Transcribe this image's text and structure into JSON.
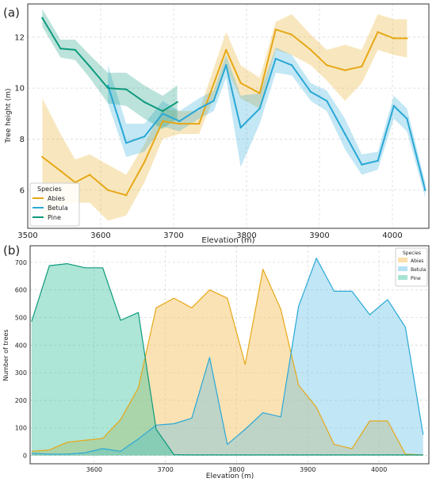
{
  "chart_data": [
    {
      "panel_label": "(a)",
      "type": "line",
      "xlabel": "Elevation (m)",
      "ylabel": "Tree height (m)",
      "xlim": [
        3500,
        4050
      ],
      "ylim": [
        4.5,
        13.3
      ],
      "xticks": [
        3500,
        3600,
        3700,
        3800,
        3900,
        4000
      ],
      "yticks": [
        6,
        8,
        10,
        12
      ],
      "grid": true,
      "legend": {
        "title": "Species",
        "placement": "lower-left",
        "entries": [
          "Abies",
          "Betula",
          "Pine"
        ]
      },
      "series": [
        {
          "name": "Abies",
          "color": "#e6a817",
          "x": [
            3520,
            3545,
            3565,
            3585,
            3610,
            3635,
            3660,
            3685,
            3708,
            3735,
            3772,
            3792,
            3818,
            3840,
            3862,
            3888,
            3910,
            3935,
            3958,
            3980,
            4002,
            4020
          ],
          "y": [
            7.3,
            6.75,
            6.3,
            6.6,
            6.0,
            5.8,
            7.1,
            8.7,
            8.6,
            8.6,
            11.5,
            10.2,
            9.8,
            12.3,
            12.1,
            11.5,
            10.9,
            10.7,
            10.85,
            12.2,
            11.95,
            11.95
          ],
          "lower": [
            4.8,
            5.4,
            5.5,
            5.5,
            4.8,
            5.0,
            6.3,
            8.0,
            8.2,
            8.2,
            10.8,
            9.6,
            9.2,
            11.5,
            11.3,
            10.9,
            10.3,
            9.5,
            10.2,
            11.5,
            11.3,
            11.2
          ],
          "upper": [
            9.6,
            8.2,
            7.2,
            7.4,
            7.0,
            6.6,
            7.8,
            9.2,
            9.1,
            9.1,
            12.2,
            10.9,
            10.4,
            12.6,
            12.9,
            12.1,
            11.5,
            11.7,
            11.5,
            12.9,
            12.7,
            12.7
          ]
        },
        {
          "name": "Betula",
          "color": "#29a8d6",
          "x": [
            3610,
            3635,
            3660,
            3685,
            3708,
            3735,
            3755,
            3772,
            3792,
            3818,
            3840,
            3862,
            3888,
            3910,
            3935,
            3958,
            3980,
            4002,
            4020,
            4045
          ],
          "y": [
            10.1,
            7.85,
            8.1,
            9.0,
            8.7,
            9.2,
            9.5,
            10.9,
            8.45,
            9.2,
            11.15,
            10.9,
            9.85,
            9.5,
            8.2,
            7.0,
            7.15,
            9.3,
            8.8,
            6.0
          ],
          "lower": [
            9.4,
            7.3,
            7.5,
            8.5,
            8.3,
            8.8,
            9.1,
            10.4,
            6.9,
            8.6,
            10.6,
            10.5,
            9.5,
            9.1,
            7.6,
            6.6,
            6.8,
            8.8,
            8.3,
            5.7
          ],
          "upper": [
            10.9,
            8.6,
            8.6,
            9.5,
            9.1,
            9.6,
            9.9,
            11.3,
            9.7,
            9.8,
            11.6,
            11.3,
            10.2,
            9.9,
            8.8,
            7.4,
            7.5,
            9.7,
            9.2,
            6.3
          ]
        },
        {
          "name": "Pine",
          "color": "#0e9a7d",
          "x": [
            3520,
            3545,
            3565,
            3585,
            3610,
            3635,
            3660,
            3685,
            3705
          ],
          "y": [
            12.75,
            11.55,
            11.5,
            10.85,
            10.0,
            9.95,
            9.45,
            9.1,
            9.45
          ],
          "lower": [
            12.4,
            11.2,
            11.1,
            10.4,
            9.4,
            9.3,
            8.8,
            8.4,
            8.8
          ],
          "upper": [
            13.1,
            11.9,
            11.9,
            11.3,
            10.6,
            10.6,
            10.1,
            9.7,
            10.1
          ]
        }
      ]
    },
    {
      "panel_label": "(b)",
      "type": "area",
      "xlabel": "Elevation (m)",
      "ylabel": "Number of trees",
      "xlim": [
        3510,
        4070
      ],
      "ylim": [
        -30,
        760
      ],
      "xticks": [
        3600,
        3700,
        3800,
        3900,
        4000
      ],
      "yticks": [
        0,
        100,
        200,
        300,
        400,
        500,
        600,
        700
      ],
      "grid": true,
      "legend": {
        "title": "Species",
        "placement": "top-right",
        "entries": [
          "Abies",
          "Betula",
          "Pine"
        ]
      },
      "series": [
        {
          "name": "Abies",
          "color": "#f5c66a",
          "x": [
            3512,
            3537,
            3562,
            3587,
            3612,
            3637,
            3662,
            3687,
            3712,
            3737,
            3762,
            3787,
            3812,
            3837,
            3862,
            3887,
            3912,
            3937,
            3962,
            3987,
            4012,
            4037,
            4062
          ],
          "y": [
            15,
            20,
            48,
            55,
            62,
            130,
            245,
            535,
            570,
            535,
            600,
            570,
            330,
            675,
            530,
            255,
            175,
            40,
            25,
            125,
            125,
            5,
            2
          ]
        },
        {
          "name": "Betula",
          "color": "#5bbde8",
          "x": [
            3512,
            3537,
            3562,
            3587,
            3612,
            3637,
            3662,
            3687,
            3712,
            3737,
            3762,
            3787,
            3812,
            3837,
            3862,
            3887,
            3912,
            3937,
            3962,
            3987,
            4012,
            4037,
            4062
          ],
          "y": [
            8,
            5,
            5,
            10,
            25,
            15,
            60,
            110,
            115,
            135,
            355,
            40,
            95,
            155,
            140,
            540,
            715,
            595,
            595,
            510,
            565,
            465,
            75
          ]
        },
        {
          "name": "Pine",
          "color": "#3cc29e",
          "x": [
            3512,
            3537,
            3562,
            3587,
            3612,
            3637,
            3662,
            3687,
            3712,
            3737,
            3762,
            3787,
            3812,
            3837,
            3862,
            3887,
            3912,
            3937,
            3962,
            3987,
            4012,
            4037,
            4062
          ],
          "y": [
            485,
            688,
            695,
            680,
            680,
            490,
            518,
            95,
            3,
            2,
            2,
            2,
            2,
            2,
            2,
            2,
            2,
            2,
            2,
            2,
            2,
            2,
            2
          ]
        }
      ]
    }
  ]
}
